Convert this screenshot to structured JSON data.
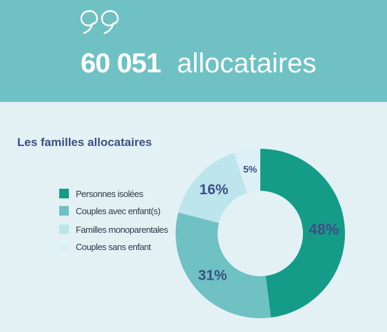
{
  "header": {
    "number": "60 051",
    "label": "allocataires",
    "quote_icon": "quote-icon"
  },
  "section": {
    "title": "Les familles allocataires"
  },
  "colors": {
    "header_bg": "#6fc1c3",
    "page_bg": "#e3f1f5",
    "title_text": "#3d4f86"
  },
  "chart_data": {
    "type": "pie",
    "donut": true,
    "title": "Les familles allocataires",
    "categories": [
      "Personnes isolées",
      "Couples avec enfant(s)",
      "Familles monoparentales",
      "Couples sans enfant"
    ],
    "values": [
      48,
      31,
      16,
      5
    ],
    "data_labels": [
      "48%",
      "31%",
      "16%",
      "5%"
    ],
    "colors": [
      "#149c88",
      "#6fc1c3",
      "#bde6ec",
      "#dcf1f5"
    ],
    "legend_position": "left"
  }
}
